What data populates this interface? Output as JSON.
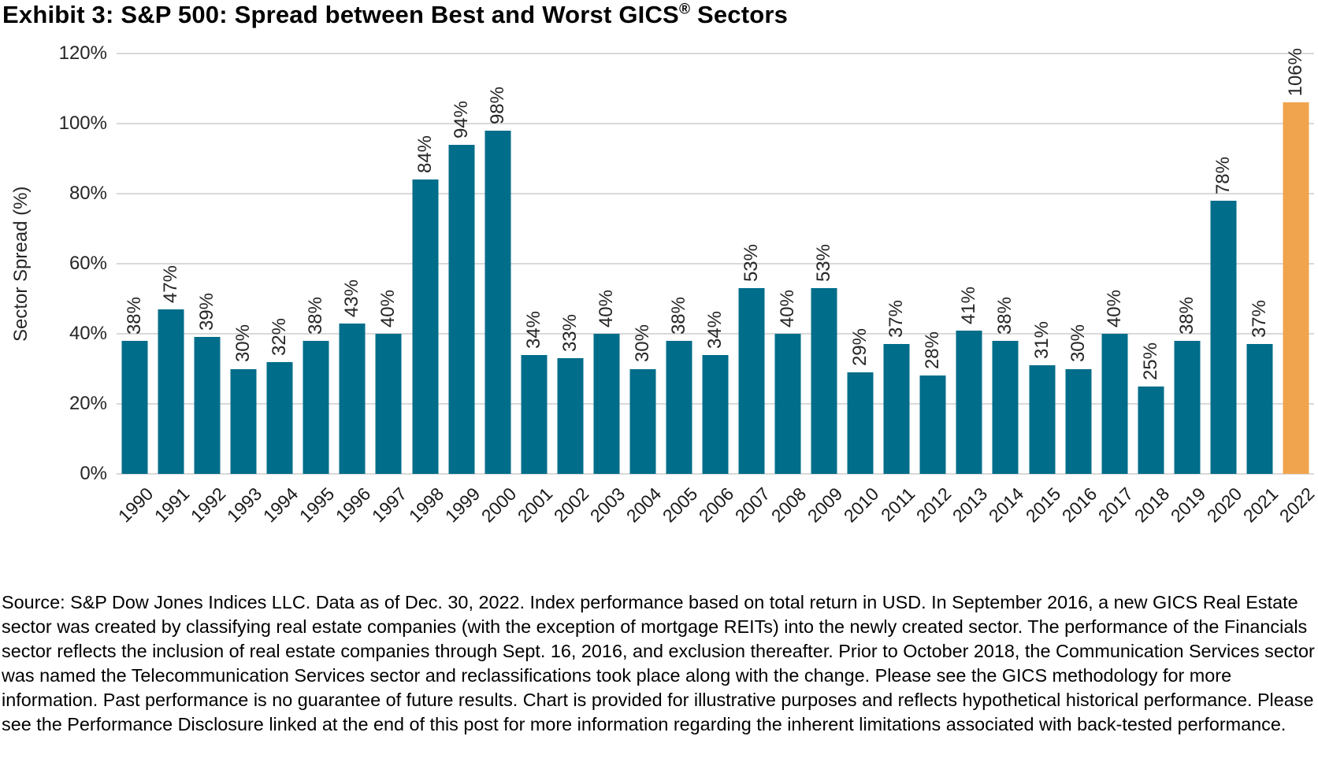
{
  "title": {
    "prefix": "Exhibit 3: S&P 500: Spread between Best and Worst GICS",
    "registered_mark": "®",
    "suffix": " Sectors"
  },
  "chart_data": {
    "type": "bar",
    "title": "Exhibit 3: S&P 500: Spread between Best and Worst GICS® Sectors",
    "xlabel": "",
    "ylabel": "Sector Spread (%)",
    "ylim": [
      0,
      120
    ],
    "yticks": [
      0,
      20,
      40,
      60,
      80,
      100,
      120
    ],
    "ytick_suffix": "%",
    "grid": true,
    "legend": "none",
    "categories": [
      "1990",
      "1991",
      "1992",
      "1993",
      "1994",
      "1995",
      "1996",
      "1997",
      "1998",
      "1999",
      "2000",
      "2001",
      "2002",
      "2003",
      "2004",
      "2005",
      "2006",
      "2007",
      "2008",
      "2009",
      "2010",
      "2011",
      "2012",
      "2013",
      "2014",
      "2015",
      "2016",
      "2017",
      "2018",
      "2019",
      "2020",
      "2021",
      "2022"
    ],
    "values": [
      38,
      47,
      39,
      30,
      32,
      38,
      43,
      40,
      84,
      94,
      98,
      34,
      33,
      40,
      30,
      38,
      34,
      53,
      40,
      53,
      29,
      37,
      28,
      41,
      38,
      31,
      30,
      40,
      25,
      38,
      78,
      37,
      106
    ],
    "value_label_suffix": "%",
    "bar_color": "#006D8A",
    "highlight_color": "#F0A44E",
    "highlight_category": "2022",
    "gridline_color": "#d9d9d9"
  },
  "footnote": "Source: S&P Dow Jones Indices LLC. Data as of Dec. 30, 2022. Index performance based on total return in USD. In September 2016, a new GICS Real Estate sector was created by classifying real estate companies (with the exception of mortgage REITs) into the newly created sector. The performance of the Financials sector reflects the inclusion of real estate companies through Sept. 16, 2016, and exclusion thereafter. Prior to October 2018, the Communication Services sector was named the Telecommunication Services sector and reclassifications took place along with the change. Please see the GICS methodology for more information. Past performance is no guarantee of future results. Chart is provided for illustrative purposes and reflects hypothetical historical performance. Please see the Performance Disclosure linked at the end of this post for more information regarding the inherent limitations associated with back-tested performance."
}
